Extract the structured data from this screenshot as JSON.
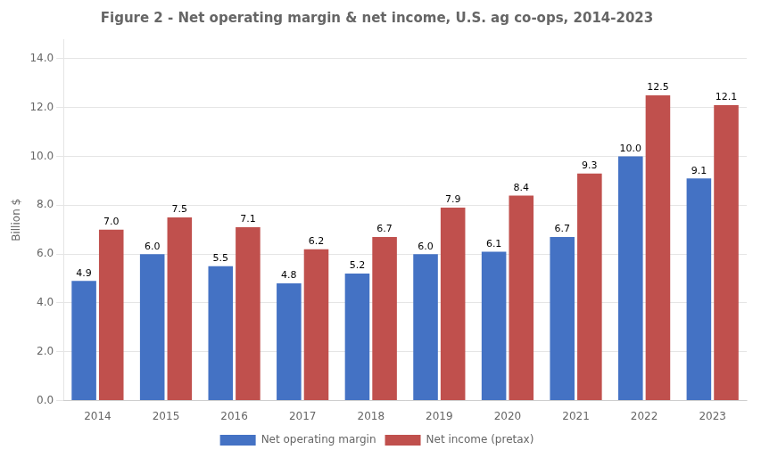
{
  "chart_data": {
    "type": "bar",
    "title": "Figure 2 - Net operating margin & net income, U.S. ag co-ops, 2014-2023",
    "ylabel": "Billion $",
    "categories": [
      "2014",
      "2015",
      "2016",
      "2017",
      "2018",
      "2019",
      "2020",
      "2021",
      "2022",
      "2023"
    ],
    "series": [
      {
        "name": "Net operating margin",
        "color": "#4472C4",
        "values": [
          4.9,
          6.0,
          5.5,
          4.8,
          5.2,
          6.0,
          6.1,
          6.7,
          10.0,
          9.1
        ],
        "value_labels": [
          "4.9",
          "6.0",
          "5.5",
          "4.8",
          "5.2",
          "6.0",
          "6.1",
          "6.7",
          "10.0",
          "9.1"
        ]
      },
      {
        "name": "Net income (pretax)",
        "color": "#C0504D",
        "values": [
          7.0,
          7.5,
          7.1,
          6.2,
          6.7,
          7.9,
          8.4,
          9.3,
          12.5,
          12.1
        ],
        "value_labels": [
          "7.0",
          "7.5",
          "7.1",
          "6.2",
          "6.7",
          "7.9",
          "8.4",
          "9.3",
          "12.5",
          "12.1"
        ]
      }
    ],
    "ylim": [
      0,
      14.8
    ],
    "yticks": [
      {
        "value": 0,
        "label": "0.0"
      },
      {
        "value": 2,
        "label": "2.0"
      },
      {
        "value": 4,
        "label": "4.0"
      },
      {
        "value": 6,
        "label": "6.0"
      },
      {
        "value": 8,
        "label": "8.0"
      },
      {
        "value": 10,
        "label": "10.0"
      },
      {
        "value": 12,
        "label": "12.0"
      },
      {
        "value": 14,
        "label": "14.0"
      }
    ],
    "grid": true,
    "legend": "bottom",
    "data_labels": true
  }
}
